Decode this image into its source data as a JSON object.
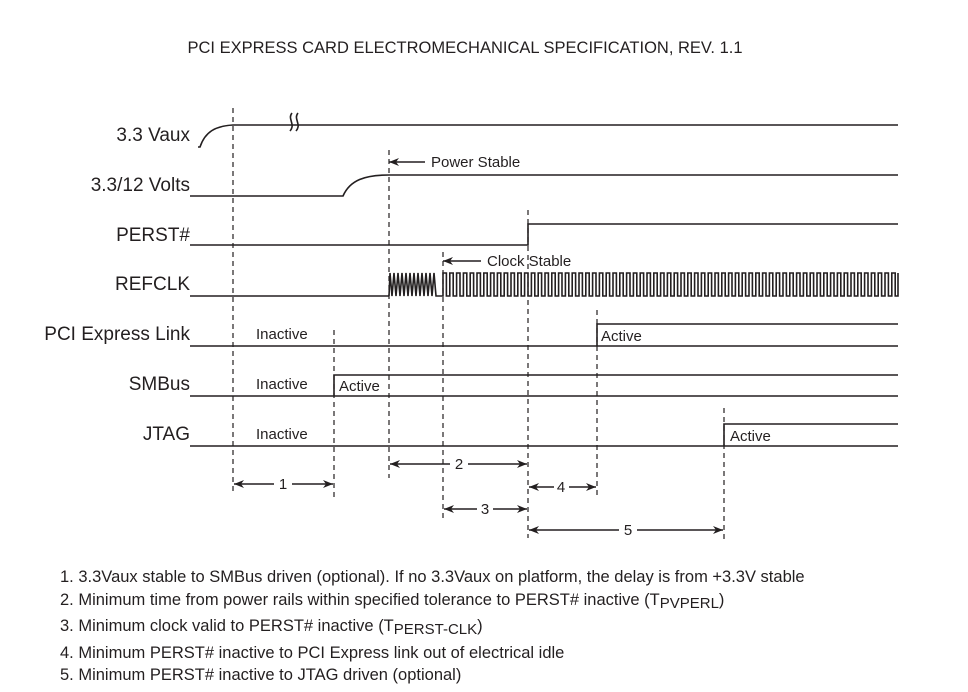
{
  "title": "PCI EXPRESS CARD ELECTROMECHANICAL SPECIFICATION, REV. 1.1",
  "signals": [
    "3.3 Vaux",
    "3.3/12 Volts",
    "PERST#",
    "REFCLK",
    "PCI Express Link",
    "SMBus",
    "JTAG"
  ],
  "states": {
    "inactive": "Inactive",
    "active": "Active"
  },
  "annotations": {
    "power_stable": "Power Stable",
    "clock_stable": "Clock Stable"
  },
  "intervals": [
    "1",
    "2",
    "3",
    "4",
    "5"
  ],
  "notes": [
    {
      "text": "1. 3.3Vaux stable to SMBus driven (optional). If no 3.3Vaux on platform, the delay is from +3.3V stable"
    },
    {
      "text": "2. Minimum time from power rails within specified tolerance to PERST# inactive (T",
      "sub": "PVPERL",
      "tail": ")"
    },
    {
      "text": "3. Minimum clock valid to PERST# inactive (T",
      "sub": "PERST-CLK",
      "tail": ")"
    },
    {
      "text": "4. Minimum PERST# inactive to PCI Express link out of electrical idle"
    },
    {
      "text": "5. Minimum PERST# inactive to JTAG driven (optional)"
    }
  ]
}
